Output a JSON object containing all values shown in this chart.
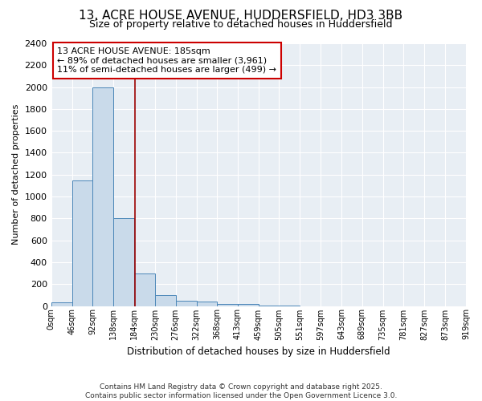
{
  "title_line1": "13, ACRE HOUSE AVENUE, HUDDERSFIELD, HD3 3BB",
  "title_line2": "Size of property relative to detached houses in Huddersfield",
  "xlabel": "Distribution of detached houses by size in Huddersfield",
  "ylabel": "Number of detached properties",
  "footer_line1": "Contains HM Land Registry data © Crown copyright and database right 2025.",
  "footer_line2": "Contains public sector information licensed under the Open Government Licence 3.0.",
  "annotation_line1": "13 ACRE HOUSE AVENUE: 185sqm",
  "annotation_line2": "← 89% of detached houses are smaller (3,961)",
  "annotation_line3": "11% of semi-detached houses are larger (499) →",
  "bin_edges": [
    0,
    46,
    92,
    138,
    184,
    230,
    276,
    322,
    368,
    413,
    459,
    505,
    551,
    597,
    643,
    689,
    735,
    781,
    827,
    873,
    919
  ],
  "bin_labels": [
    "0sqm",
    "46sqm",
    "92sqm",
    "138sqm",
    "184sqm",
    "230sqm",
    "276sqm",
    "322sqm",
    "368sqm",
    "413sqm",
    "459sqm",
    "505sqm",
    "551sqm",
    "597sqm",
    "643sqm",
    "689sqm",
    "735sqm",
    "781sqm",
    "827sqm",
    "873sqm",
    "919sqm"
  ],
  "bar_heights": [
    30,
    1150,
    2000,
    800,
    300,
    100,
    45,
    40,
    20,
    20,
    5,
    5,
    0,
    0,
    0,
    0,
    0,
    0,
    0,
    0
  ],
  "bar_color": "#c9daea",
  "bar_edge_color": "#4a86b8",
  "vline_color": "#990000",
  "vline_x": 185,
  "annotation_box_color": "#cc0000",
  "fig_bg_color": "#ffffff",
  "plot_bg_color": "#e8eef4",
  "grid_color": "#ffffff",
  "ylim": [
    0,
    2400
  ],
  "yticks": [
    0,
    200,
    400,
    600,
    800,
    1000,
    1200,
    1400,
    1600,
    1800,
    2000,
    2200,
    2400
  ],
  "title_fontsize": 11,
  "subtitle_fontsize": 9,
  "ylabel_fontsize": 8,
  "xlabel_fontsize": 8.5,
  "ytick_fontsize": 8,
  "xtick_fontsize": 7,
  "footer_fontsize": 6.5,
  "annot_fontsize": 8
}
